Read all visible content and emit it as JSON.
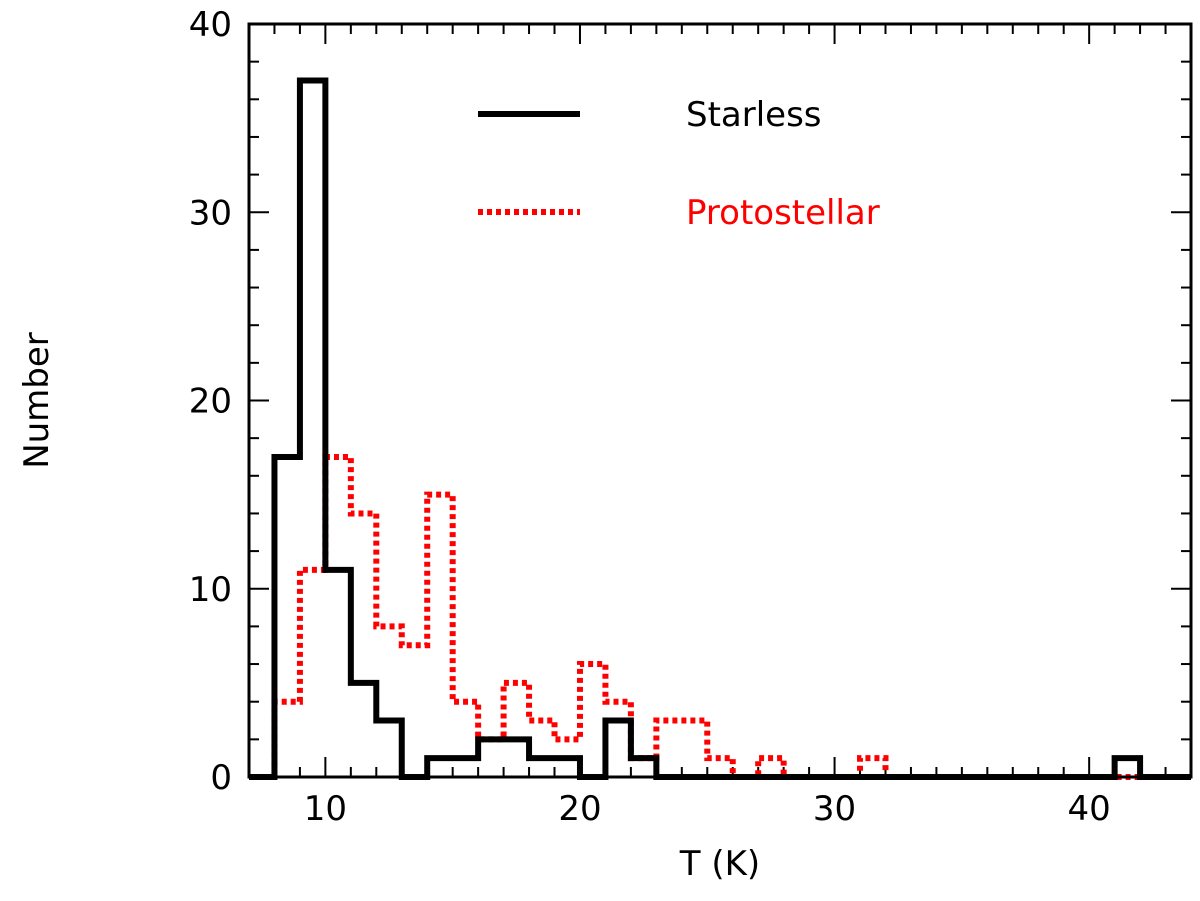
{
  "chart_data": {
    "type": "histogram",
    "xlabel": "T (K)",
    "ylabel": "Number",
    "xlim": [
      7,
      44
    ],
    "ylim": [
      0,
      40
    ],
    "x_major_ticks": [
      10,
      20,
      30,
      40
    ],
    "y_major_ticks": [
      0,
      10,
      20,
      30,
      40
    ],
    "x_minor_step": 1,
    "y_minor_step": 2,
    "legend_position": "top-center",
    "series": [
      {
        "name": "Starless",
        "style": "solid",
        "color": "#000000",
        "bin_edges": [
          7,
          8,
          9,
          10,
          11,
          12,
          13,
          14,
          15,
          16,
          17,
          18,
          19,
          20,
          21,
          22,
          23,
          24,
          25,
          26,
          27,
          28,
          29,
          30,
          31,
          32,
          33,
          34,
          35,
          36,
          37,
          38,
          39,
          40,
          41,
          42,
          43,
          44
        ],
        "counts": [
          0,
          17,
          37,
          11,
          5,
          3,
          0,
          1,
          1,
          2,
          2,
          1,
          1,
          0,
          3,
          1,
          0,
          0,
          0,
          0,
          0,
          0,
          0,
          0,
          0,
          0,
          0,
          0,
          0,
          0,
          0,
          0,
          0,
          0,
          1,
          0,
          0
        ]
      },
      {
        "name": "Protostellar",
        "style": "dotted",
        "color": "#ff0000",
        "bin_edges": [
          7,
          7.5,
          8,
          8.5,
          9,
          9.5,
          10,
          10.5,
          11,
          11.5,
          12,
          12.5,
          13,
          13.5,
          14,
          14.5,
          15,
          15.5,
          16,
          16.5,
          17,
          17.5,
          18,
          18.5,
          19,
          19.5,
          20,
          20.5,
          21,
          21.5,
          22,
          22.5,
          23,
          23.5,
          24,
          24.5,
          25,
          25.5,
          26,
          26.5,
          27,
          27.5,
          28,
          28.5,
          29,
          29.5,
          30,
          30.5,
          31,
          31.5,
          32,
          32.5,
          33,
          33.5,
          34,
          34.5,
          35,
          35.5,
          36,
          36.5,
          37,
          37.5,
          38,
          38.5,
          39,
          39.5,
          40,
          40.5,
          41,
          41.5,
          42,
          42.5,
          43,
          43.5,
          44
        ],
        "counts": [
          0,
          0,
          4,
          4,
          11,
          11,
          17,
          17,
          14,
          14,
          8,
          8,
          7,
          7,
          15,
          15,
          4,
          4,
          2,
          2,
          5,
          5,
          3,
          3,
          2,
          2,
          6,
          6,
          4,
          4,
          1,
          1,
          3,
          3,
          3,
          3,
          1,
          1,
          0,
          0,
          1,
          1,
          0,
          0,
          0,
          0,
          0,
          0,
          1,
          1,
          0,
          0,
          0,
          0,
          0,
          0,
          0,
          0,
          0,
          0,
          0,
          0,
          0,
          0,
          0,
          0,
          0,
          0,
          0,
          0,
          0,
          0,
          0,
          0
        ]
      }
    ]
  }
}
